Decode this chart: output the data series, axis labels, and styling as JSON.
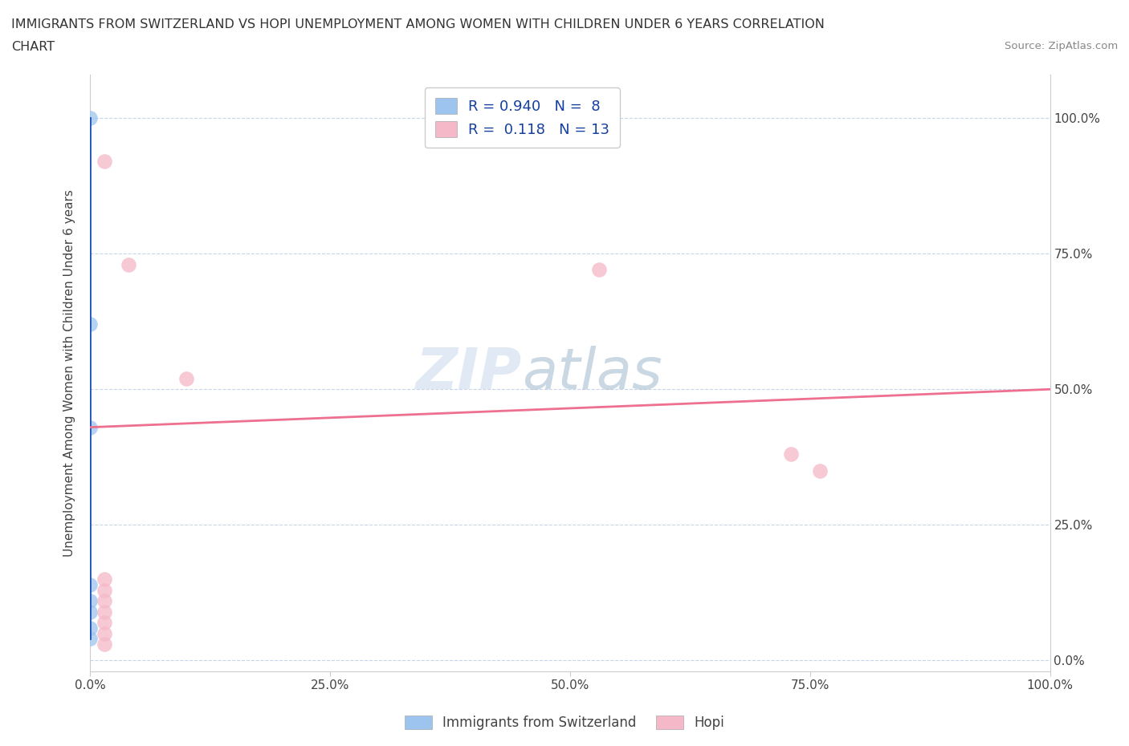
{
  "title_line1": "IMMIGRANTS FROM SWITZERLAND VS HOPI UNEMPLOYMENT AMONG WOMEN WITH CHILDREN UNDER 6 YEARS CORRELATION",
  "title_line2": "CHART",
  "source": "Source: ZipAtlas.com",
  "ylabel": "Unemployment Among Women with Children Under 6 years",
  "x_tick_labels": [
    "0.0%",
    "25.0%",
    "50.0%",
    "75.0%",
    "100.0%"
  ],
  "x_tick_values": [
    0,
    25,
    50,
    75,
    100
  ],
  "y_tick_labels": [
    "0.0%",
    "25.0%",
    "50.0%",
    "75.0%",
    "100.0%"
  ],
  "y_tick_values": [
    0,
    25,
    50,
    75,
    100
  ],
  "xlim": [
    0,
    100
  ],
  "ylim": [
    -2,
    108
  ],
  "switzerland_x": [
    0.0,
    0.0,
    0.0,
    0.0,
    0.0,
    0.0,
    0.0,
    0.0
  ],
  "switzerland_y": [
    100,
    62,
    43,
    14,
    11,
    9,
    6,
    4
  ],
  "hopi_x": [
    1.5,
    4,
    10,
    53,
    73,
    76,
    1.5,
    1.5,
    1.5,
    1.5,
    1.5,
    1.5,
    1.5
  ],
  "hopi_y": [
    92,
    73,
    52,
    72,
    38,
    35,
    15,
    13,
    11,
    9,
    7,
    5,
    3
  ],
  "switzerland_color": "#9DC4EE",
  "hopi_color": "#F5B8C8",
  "switzerland_line_color": "#2255BB",
  "hopi_line_color": "#EE7090",
  "legend_r_switzerland": "0.940",
  "legend_n_switzerland": "8",
  "legend_r_hopi": "0.118",
  "legend_n_hopi": "13",
  "watermark_zip": "ZIP",
  "watermark_atlas": "atlas",
  "background_color": "#ffffff",
  "grid_color": "#c8d4e8",
  "marker_size": 180,
  "bottom_legend_labels": [
    "Immigrants from Switzerland",
    "Hopi"
  ]
}
